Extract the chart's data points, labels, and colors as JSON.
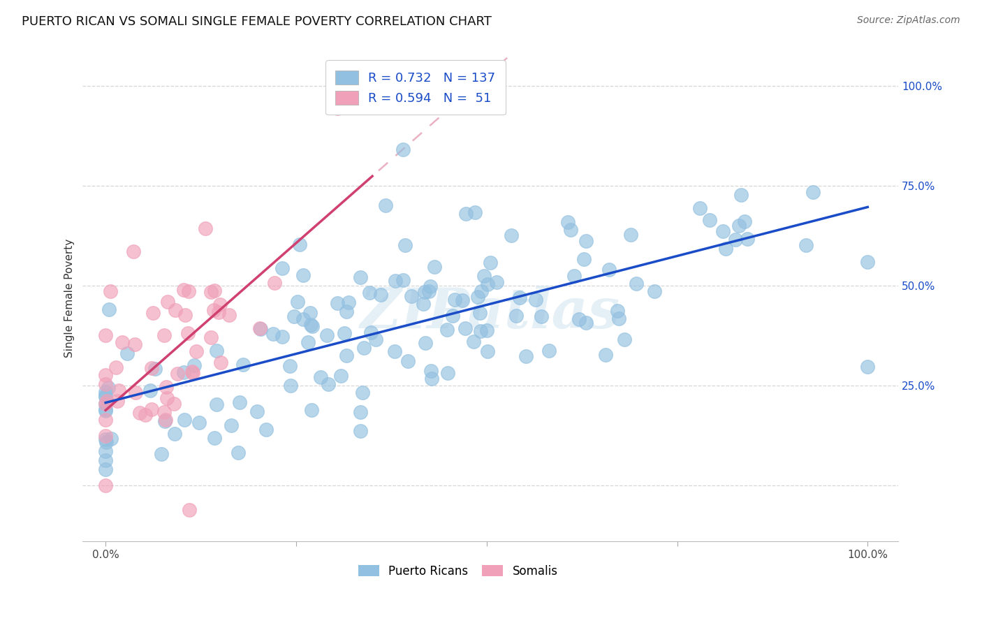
{
  "title": "PUERTO RICAN VS SOMALI SINGLE FEMALE POVERTY CORRELATION CHART",
  "source": "Source: ZipAtlas.com",
  "ylabel": "Single Female Poverty",
  "legend_label1": "Puerto Ricans",
  "legend_label2": "Somalis",
  "legend_R1": "0.732",
  "legend_N1": "137",
  "legend_R2": "0.594",
  "legend_N2": " 51",
  "color_blue": "#92C0E0",
  "color_pink": "#F0A0B8",
  "line_color_blue": "#1A4CC8",
  "line_color_pink": "#D04070",
  "line_color_pink_ext": "#E090A8",
  "watermark": "ZIPatlas",
  "title_fontsize": 13,
  "axis_label_fontsize": 11,
  "tick_fontsize": 11,
  "source_fontsize": 10
}
